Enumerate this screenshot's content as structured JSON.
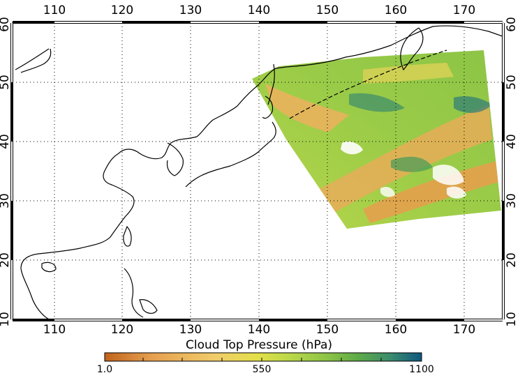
{
  "map": {
    "projection": "lat-lon",
    "lon_range": [
      105,
      175
    ],
    "lat_range": [
      10,
      60
    ],
    "lon_ticks": [
      "110",
      "120",
      "130",
      "140",
      "150",
      "160",
      "170"
    ],
    "lat_ticks": [
      "10",
      "20",
      "30",
      "40",
      "50",
      "60"
    ],
    "grid": "dotted",
    "coastline_color": "#000000"
  },
  "colorbar": {
    "title": "Cloud Top Pressure (hPa)",
    "min_label": "1.0",
    "mid_label": "550",
    "max_label": "1100",
    "colors": [
      "#c0641c",
      "#e6a050",
      "#f0cc6a",
      "#e3e04a",
      "#bcd84a",
      "#8cc446",
      "#5eaa48",
      "#3c8c6c",
      "#1e6d84",
      "#0e5880"
    ]
  }
}
